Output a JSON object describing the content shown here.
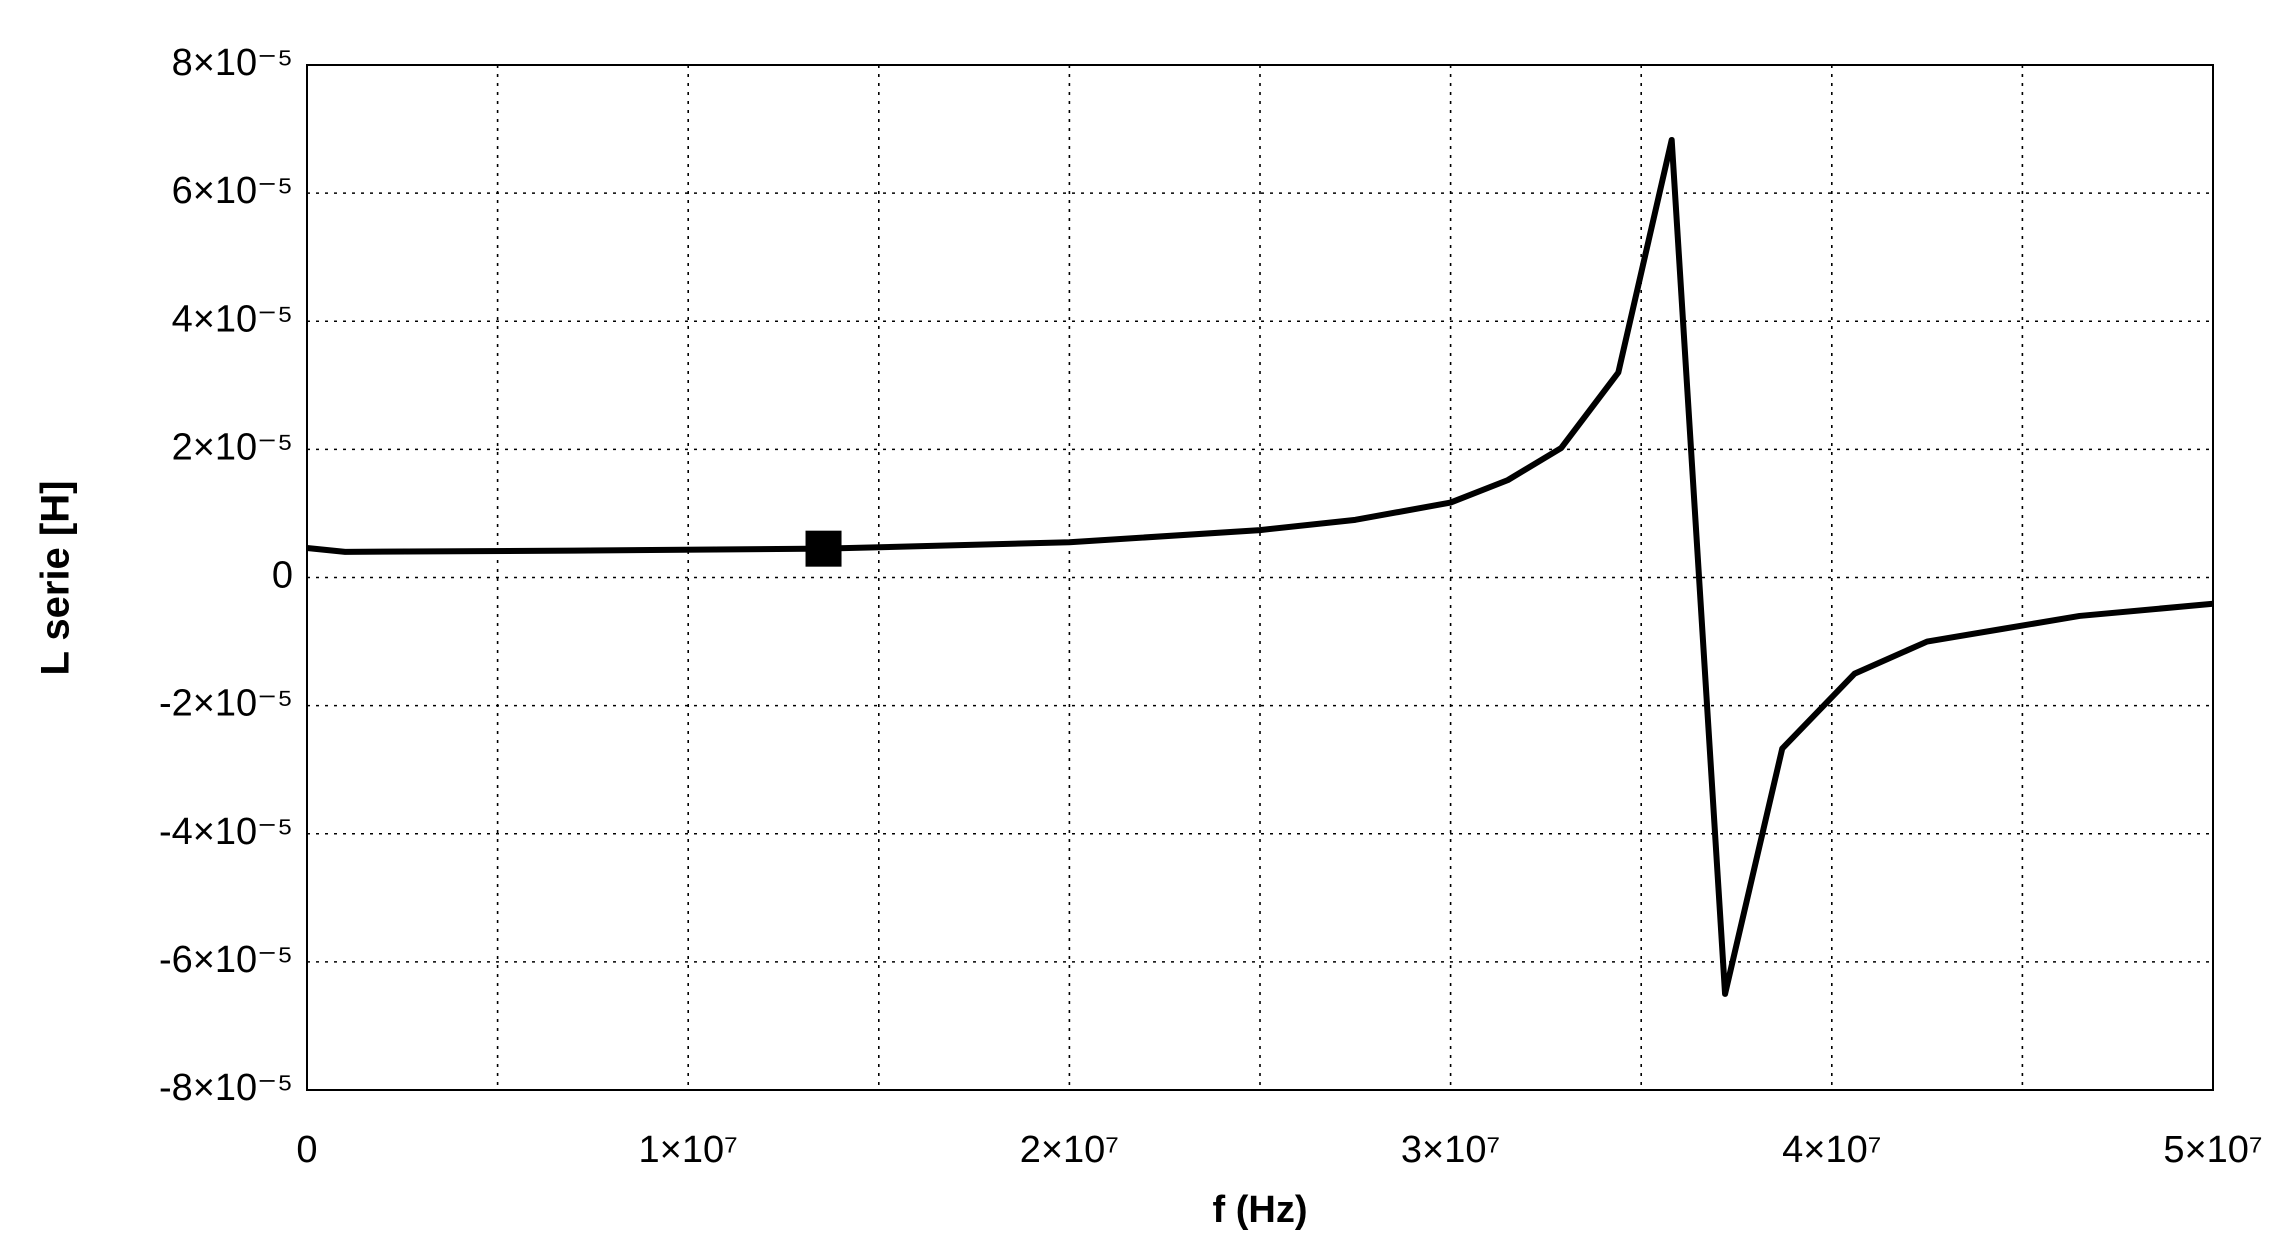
{
  "chart_data": {
    "type": "line",
    "xlabel": "f (Hz)",
    "ylabel": "L serie [H]",
    "xlim": [
      0,
      50000000
    ],
    "ylim": [
      -8e-05,
      8e-05
    ],
    "xticks": [
      0,
      {
        "value": 10000000,
        "label": "1×10⁷"
      },
      {
        "value": 20000000,
        "label": "2×10⁷"
      },
      {
        "value": 30000000,
        "label": "3×10⁷"
      },
      {
        "value": 40000000,
        "label": "4×10⁷"
      },
      {
        "value": 50000000,
        "label": "5×10⁷"
      }
    ],
    "xminor_grid": [
      5000000,
      15000000,
      25000000,
      35000000,
      45000000
    ],
    "yticks": [
      {
        "value": -8e-05,
        "label": "-8×10⁻⁵"
      },
      {
        "value": -6e-05,
        "label": "-6×10⁻⁵"
      },
      {
        "value": -4e-05,
        "label": "-4×10⁻⁵"
      },
      {
        "value": -2e-05,
        "label": "-2×10⁻⁵"
      },
      0,
      {
        "value": 2e-05,
        "label": "2×10⁻⁵"
      },
      {
        "value": 4e-05,
        "label": "4×10⁻⁵"
      },
      {
        "value": 6e-05,
        "label": "6×10⁻⁵"
      },
      {
        "value": 8e-05,
        "label": "8×10⁻⁵"
      }
    ],
    "grid": true,
    "series": [
      {
        "color": "#000000",
        "x": [
          0,
          1000000,
          7000000,
          13550000,
          20000000,
          25000000,
          27500000,
          30000000,
          31500000,
          32900000,
          34400000,
          35800000,
          37200000,
          38700000,
          40600000,
          42500000,
          44500000,
          46500000,
          50000000
        ],
        "values": [
          4.6e-06,
          4e-06,
          4.2e-06,
          4.5e-06,
          5.5e-06,
          7.4e-06,
          9e-06,
          1.17e-05,
          1.52e-05,
          2.02e-05,
          3.2e-05,
          6.83e-05,
          -6.5e-05,
          -2.67e-05,
          -1.5e-05,
          -1e-05,
          -8e-06,
          -6e-06,
          -4.1e-06
        ]
      }
    ],
    "highlight_point": {
      "x": 13550000,
      "y": 4.5e-06
    }
  }
}
